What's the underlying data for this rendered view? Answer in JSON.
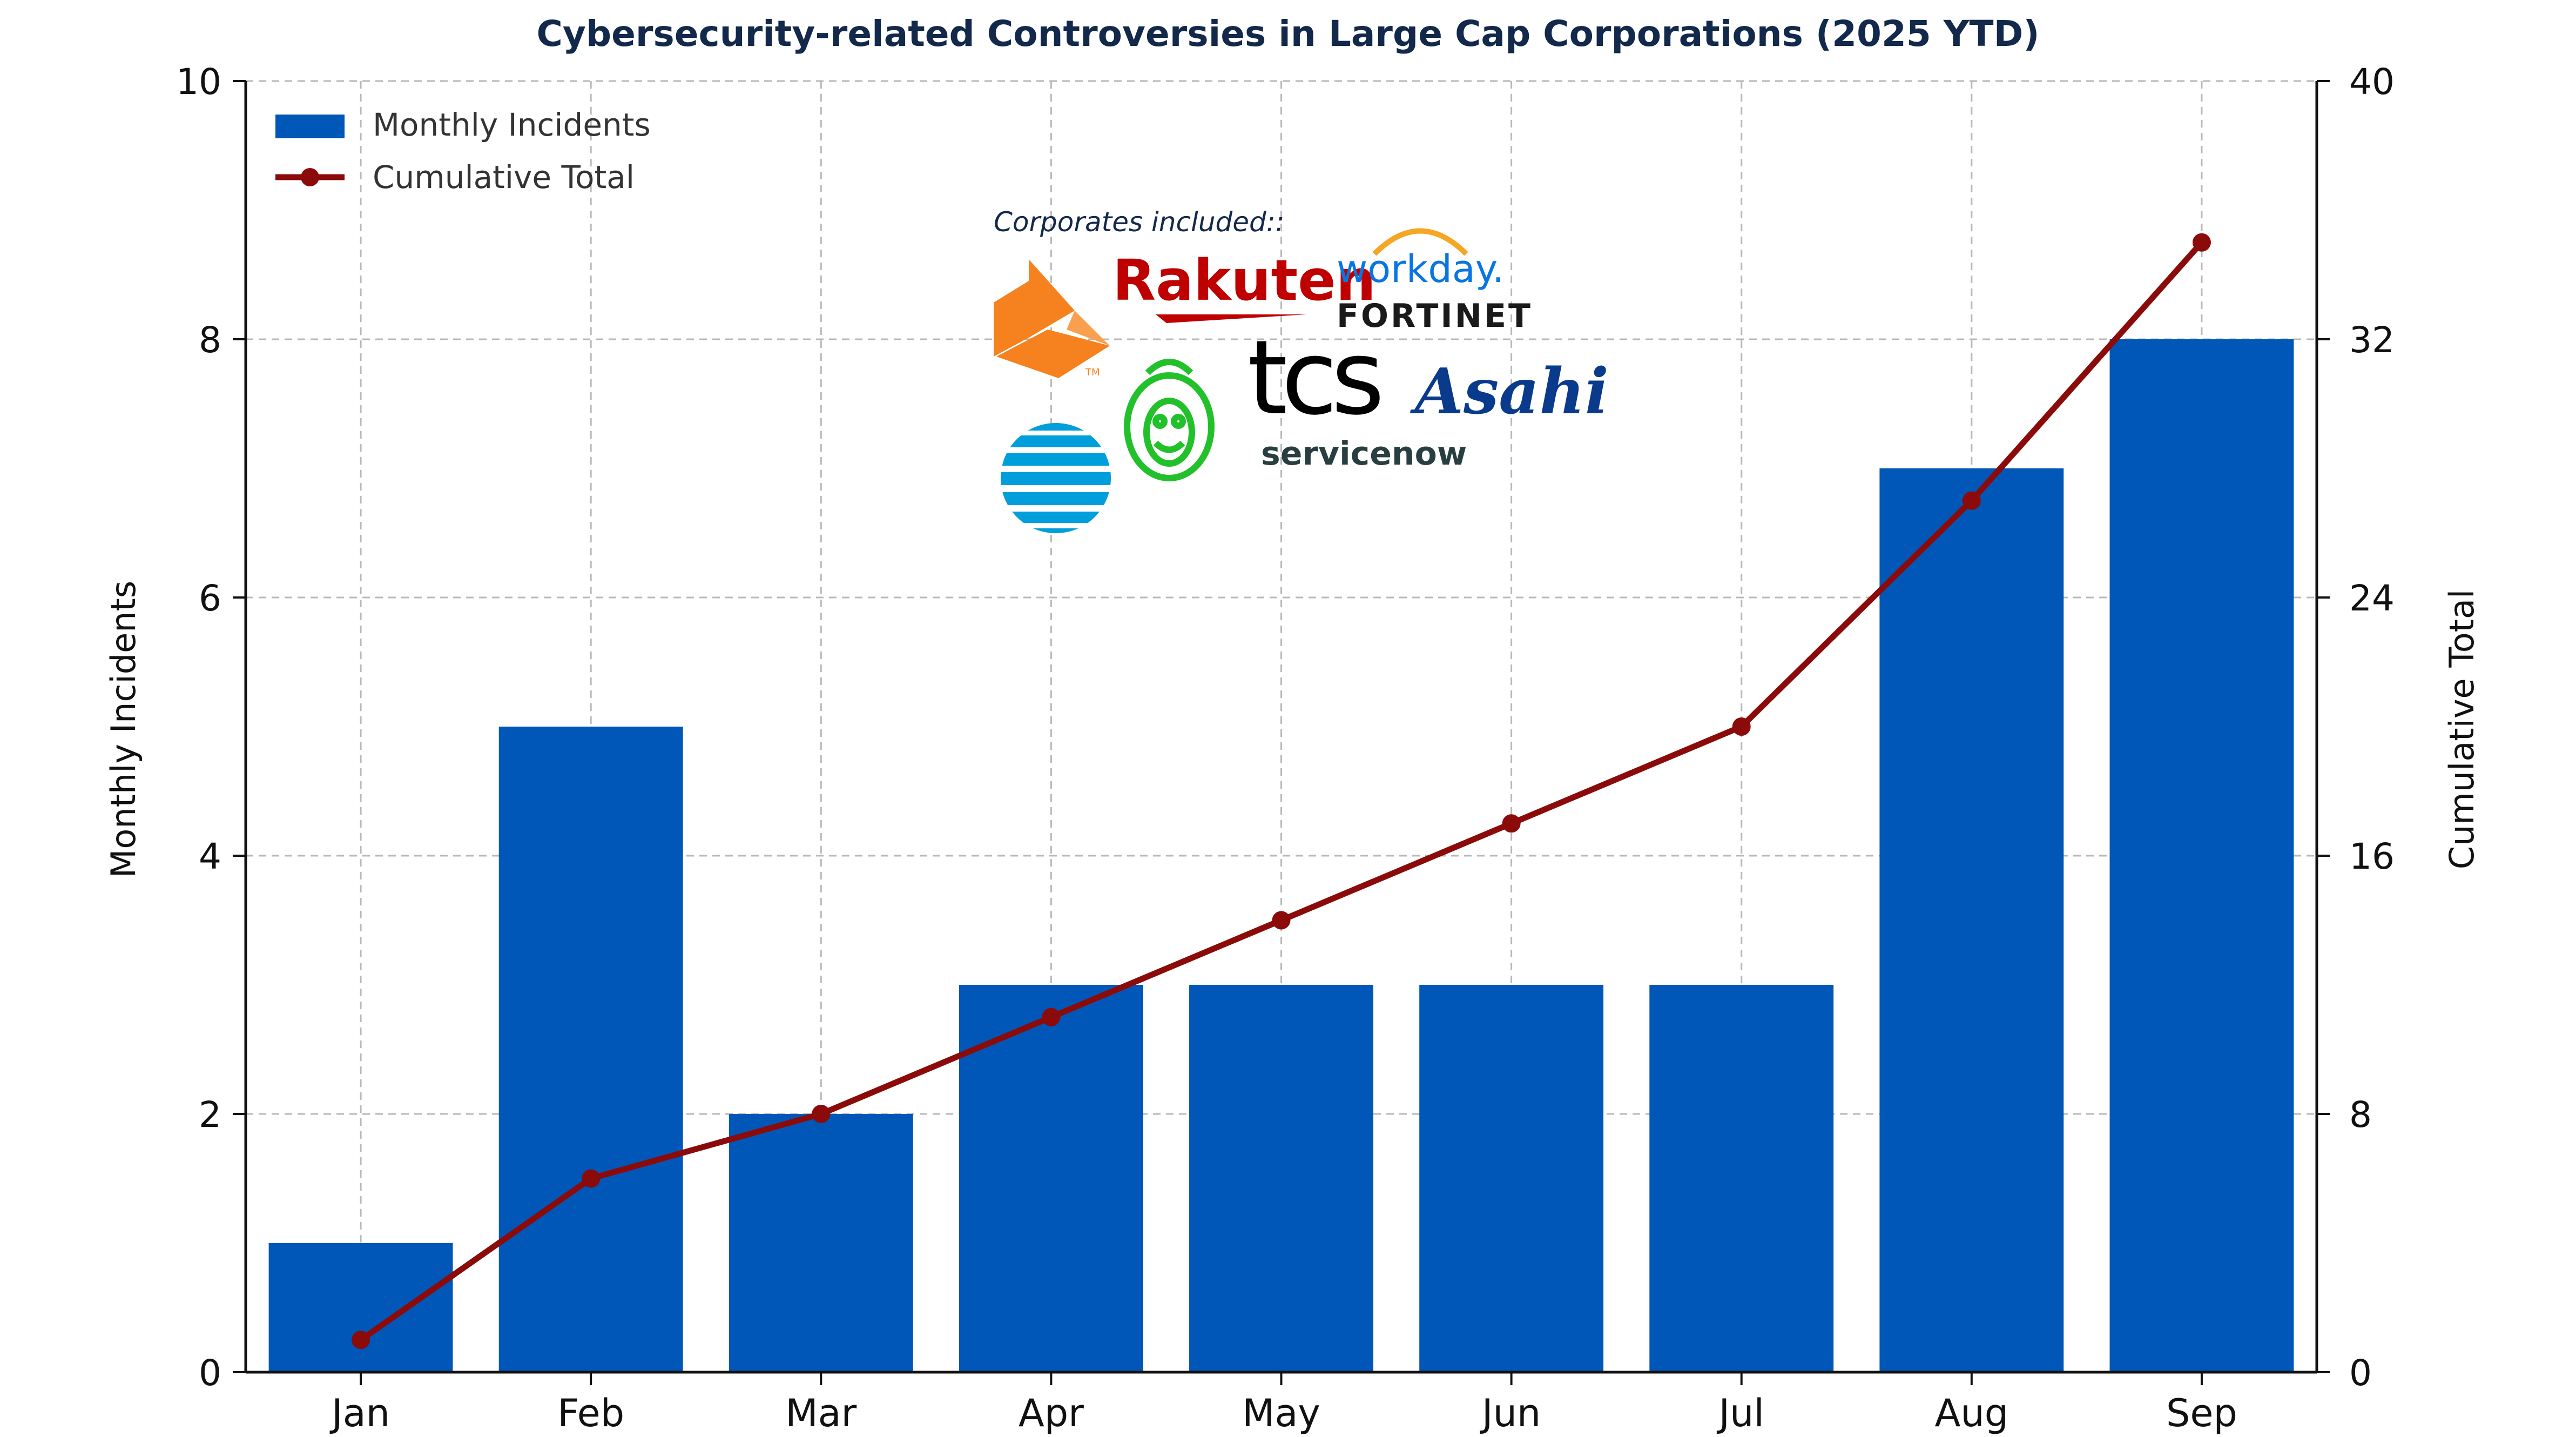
{
  "chart_data": {
    "type": "bar+line",
    "title": "Cybersecurity-related Controversies in Large Cap Corporations (2025 YTD)",
    "categories": [
      "Jan",
      "Feb",
      "Mar",
      "Apr",
      "May",
      "Jun",
      "Jul",
      "Aug",
      "Sep"
    ],
    "series": [
      {
        "name": "Monthly Incidents",
        "type": "bar",
        "axis": "left",
        "color": "#0057b8",
        "values": [
          1,
          5,
          2,
          3,
          3,
          3,
          3,
          7,
          8
        ]
      },
      {
        "name": "Cumulative Total",
        "type": "line",
        "axis": "right",
        "color": "#8b0a0a",
        "values": [
          1,
          6,
          8,
          11,
          14,
          17,
          20,
          27,
          35
        ]
      }
    ],
    "ylabel_left": "Monthly Incidents",
    "ylabel_right": "Cumulative Total",
    "ylim_left": [
      0,
      10
    ],
    "ylim_right": [
      0,
      40
    ],
    "yticks_left": [
      "0",
      "2",
      "4",
      "6",
      "8",
      "10"
    ],
    "yticks_right": [
      "0",
      "8",
      "16",
      "24",
      "32",
      "40"
    ],
    "grid": true,
    "legend": "top-left"
  },
  "annotation": {
    "heading": "Corporates included::",
    "logos": [
      {
        "name": "orange-hexagon-logo",
        "text": "",
        "color": "#f5821f"
      },
      {
        "name": "rakuten-logo",
        "text": "Rakuten",
        "color": "#bf0000"
      },
      {
        "name": "workday-logo",
        "text": "workday.",
        "color": "#0875e1"
      },
      {
        "name": "fortinet-logo",
        "text": "FORTINET",
        "color": "#1a1a1a"
      },
      {
        "name": "tcs-logo",
        "text": "tcs",
        "color": "#000000"
      },
      {
        "name": "asahi-logo",
        "text": "Asahi",
        "color": "#0a3a8c"
      },
      {
        "name": "att-logo",
        "text": "",
        "color": "#009fdb"
      },
      {
        "name": "lion-logo",
        "text": "",
        "color": "#22c12b"
      },
      {
        "name": "servicenow-logo",
        "text": "servicenow",
        "color": "#293e40"
      }
    ]
  }
}
